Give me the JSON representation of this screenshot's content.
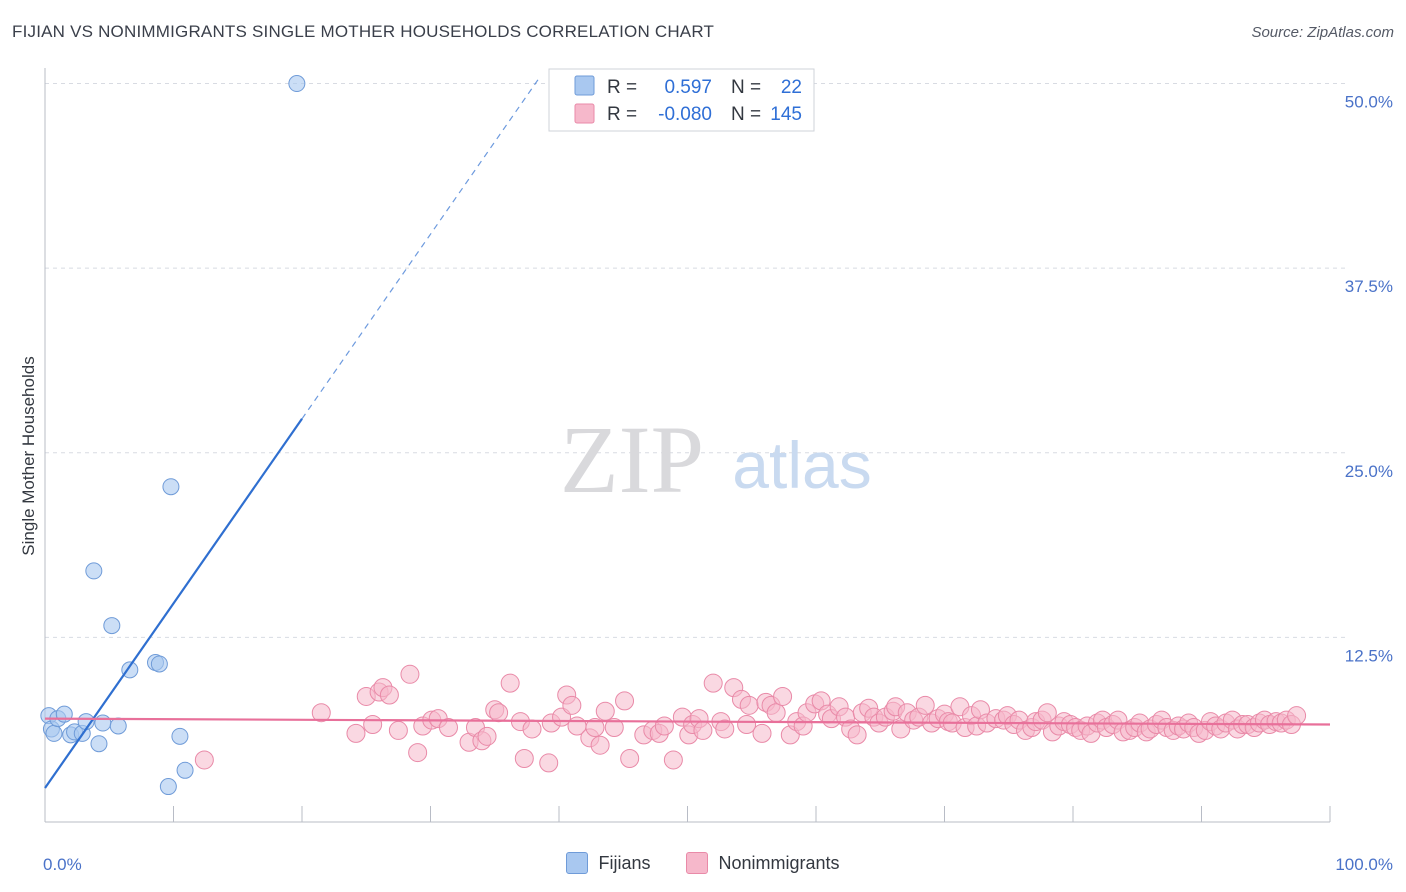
{
  "title": "FIJIAN VS NONIMMIGRANTS SINGLE MOTHER HOUSEHOLDS CORRELATION CHART",
  "source": "Source: ZipAtlas.com",
  "watermark": {
    "zip": "ZIP",
    "atlas": "atlas"
  },
  "colors": {
    "blue_fill": "#a9c8f0",
    "blue_stroke": "#6f9bd8",
    "blue_line": "#2f6fd0",
    "pink_fill": "#f6b8cb",
    "pink_stroke": "#e98aa8",
    "pink_line": "#e8709a",
    "grid": "#d8dbe2",
    "axis_text": "#4a72c8"
  },
  "legend": {
    "rows": [
      {
        "r_label": "R =",
        "r_value": "0.597",
        "n_label": "N =",
        "n_value": "22"
      },
      {
        "r_label": "R =",
        "r_value": "-0.080",
        "n_label": "N =",
        "n_value": "145"
      }
    ]
  },
  "bottom_legend": [
    {
      "label": "Fijians"
    },
    {
      "label": "Nonimmigrants"
    }
  ],
  "chart_data": {
    "type": "scatter",
    "title": "FIJIAN VS NONIMMIGRANTS SINGLE MOTHER HOUSEHOLDS CORRELATION CHART",
    "xlabel": "",
    "ylabel": "Single Mother Households",
    "xlim": [
      0,
      100
    ],
    "ylim": [
      0,
      52
    ],
    "x_tick_labels": [
      "0.0%",
      "100.0%"
    ],
    "y_ticks": [
      12.5,
      25.0,
      37.5,
      50.0
    ],
    "y_tick_labels": [
      "12.5%",
      "25.0%",
      "37.5%",
      "50.0%"
    ],
    "series": [
      {
        "name": "Fijians",
        "r": 0.597,
        "n": 22,
        "trend": {
          "x0": 0,
          "y0": 2.3,
          "x1": 20,
          "y1": 27.3,
          "dash_to_x": 38.5
        },
        "points": [
          [
            0.3,
            7.2
          ],
          [
            0.5,
            6.3
          ],
          [
            0.7,
            6.0
          ],
          [
            1.0,
            7.0
          ],
          [
            1.5,
            7.3
          ],
          [
            2.0,
            5.9
          ],
          [
            2.3,
            6.1
          ],
          [
            2.9,
            6.0
          ],
          [
            3.2,
            6.8
          ],
          [
            3.8,
            17.0
          ],
          [
            4.2,
            5.3
          ],
          [
            4.5,
            6.7
          ],
          [
            5.2,
            13.3
          ],
          [
            5.7,
            6.5
          ],
          [
            6.6,
            10.3
          ],
          [
            8.6,
            10.8
          ],
          [
            8.9,
            10.7
          ],
          [
            9.6,
            2.4
          ],
          [
            9.8,
            22.7
          ],
          [
            10.5,
            5.8
          ],
          [
            10.9,
            3.5
          ],
          [
            19.6,
            50.0
          ]
        ]
      },
      {
        "name": "Nonimmigrants",
        "r": -0.08,
        "n": 145,
        "trend": {
          "x0": 0,
          "y0": 7.0,
          "x1": 100,
          "y1": 6.6
        },
        "points": [
          [
            12.4,
            4.2
          ],
          [
            21.5,
            7.4
          ],
          [
            24.2,
            6.0
          ],
          [
            25.0,
            8.5
          ],
          [
            25.5,
            6.6
          ],
          [
            26.0,
            8.8
          ],
          [
            26.3,
            9.1
          ],
          [
            26.8,
            8.6
          ],
          [
            27.5,
            6.2
          ],
          [
            28.4,
            10.0
          ],
          [
            29.0,
            4.7
          ],
          [
            29.4,
            6.5
          ],
          [
            30.1,
            6.9
          ],
          [
            30.6,
            7.0
          ],
          [
            31.4,
            6.4
          ],
          [
            33.0,
            5.4
          ],
          [
            33.5,
            6.4
          ],
          [
            34.0,
            5.5
          ],
          [
            34.4,
            5.8
          ],
          [
            35.0,
            7.6
          ],
          [
            35.3,
            7.4
          ],
          [
            36.2,
            9.4
          ],
          [
            37.0,
            6.8
          ],
          [
            37.3,
            4.3
          ],
          [
            37.9,
            6.3
          ],
          [
            39.2,
            4.0
          ],
          [
            39.4,
            6.7
          ],
          [
            40.2,
            7.1
          ],
          [
            40.6,
            8.6
          ],
          [
            41.0,
            7.9
          ],
          [
            41.4,
            6.5
          ],
          [
            42.4,
            5.7
          ],
          [
            42.8,
            6.4
          ],
          [
            43.2,
            5.2
          ],
          [
            43.6,
            7.5
          ],
          [
            44.3,
            6.4
          ],
          [
            45.1,
            8.2
          ],
          [
            45.5,
            4.3
          ],
          [
            46.6,
            5.9
          ],
          [
            47.3,
            6.2
          ],
          [
            47.8,
            6.0
          ],
          [
            48.2,
            6.5
          ],
          [
            48.9,
            4.2
          ],
          [
            49.6,
            7.1
          ],
          [
            50.1,
            5.9
          ],
          [
            50.4,
            6.6
          ],
          [
            50.9,
            7.0
          ],
          [
            51.2,
            6.2
          ],
          [
            52.0,
            9.4
          ],
          [
            52.6,
            6.8
          ],
          [
            52.9,
            6.3
          ],
          [
            53.6,
            9.1
          ],
          [
            54.2,
            8.3
          ],
          [
            54.6,
            6.6
          ],
          [
            54.8,
            7.9
          ],
          [
            55.8,
            6.0
          ],
          [
            56.1,
            8.1
          ],
          [
            56.5,
            7.9
          ],
          [
            56.9,
            7.4
          ],
          [
            57.4,
            8.5
          ],
          [
            58.0,
            5.9
          ],
          [
            58.5,
            6.8
          ],
          [
            59.0,
            6.5
          ],
          [
            59.3,
            7.4
          ],
          [
            59.9,
            8.0
          ],
          [
            60.4,
            8.2
          ],
          [
            60.9,
            7.3
          ],
          [
            61.2,
            7.0
          ],
          [
            61.8,
            7.8
          ],
          [
            62.3,
            7.1
          ],
          [
            62.7,
            6.3
          ],
          [
            63.2,
            5.9
          ],
          [
            63.6,
            7.4
          ],
          [
            64.1,
            7.7
          ],
          [
            64.5,
            7.1
          ],
          [
            64.9,
            6.7
          ],
          [
            65.4,
            7.1
          ],
          [
            66.0,
            7.5
          ],
          [
            66.2,
            7.8
          ],
          [
            66.6,
            6.3
          ],
          [
            67.1,
            7.4
          ],
          [
            67.6,
            6.9
          ],
          [
            68.0,
            7.1
          ],
          [
            68.5,
            7.9
          ],
          [
            69.0,
            6.7
          ],
          [
            69.5,
            7.0
          ],
          [
            70.0,
            7.3
          ],
          [
            70.3,
            6.8
          ],
          [
            70.6,
            6.7
          ],
          [
            71.2,
            7.8
          ],
          [
            71.6,
            6.4
          ],
          [
            72.1,
            7.2
          ],
          [
            72.5,
            6.5
          ],
          [
            72.8,
            7.6
          ],
          [
            73.3,
            6.7
          ],
          [
            74.0,
            7.0
          ],
          [
            74.6,
            6.9
          ],
          [
            74.9,
            7.2
          ],
          [
            75.4,
            6.6
          ],
          [
            75.8,
            6.9
          ],
          [
            76.3,
            6.2
          ],
          [
            76.8,
            6.4
          ],
          [
            77.1,
            6.8
          ],
          [
            77.6,
            6.9
          ],
          [
            78.0,
            7.4
          ],
          [
            78.4,
            6.1
          ],
          [
            78.9,
            6.5
          ],
          [
            79.3,
            6.8
          ],
          [
            79.8,
            6.6
          ],
          [
            80.2,
            6.4
          ],
          [
            80.6,
            6.2
          ],
          [
            81.1,
            6.5
          ],
          [
            81.4,
            6.0
          ],
          [
            81.9,
            6.7
          ],
          [
            82.3,
            6.9
          ],
          [
            82.6,
            6.4
          ],
          [
            83.1,
            6.6
          ],
          [
            83.5,
            6.9
          ],
          [
            83.9,
            6.1
          ],
          [
            84.4,
            6.2
          ],
          [
            84.8,
            6.4
          ],
          [
            85.2,
            6.7
          ],
          [
            85.7,
            6.1
          ],
          [
            86.0,
            6.3
          ],
          [
            86.5,
            6.6
          ],
          [
            86.9,
            6.9
          ],
          [
            87.3,
            6.4
          ],
          [
            87.8,
            6.2
          ],
          [
            88.2,
            6.5
          ],
          [
            88.6,
            6.3
          ],
          [
            89.0,
            6.7
          ],
          [
            89.4,
            6.4
          ],
          [
            89.8,
            6.0
          ],
          [
            90.3,
            6.2
          ],
          [
            90.7,
            6.8
          ],
          [
            91.1,
            6.5
          ],
          [
            91.5,
            6.3
          ],
          [
            91.9,
            6.7
          ],
          [
            92.4,
            6.9
          ],
          [
            92.8,
            6.3
          ],
          [
            93.2,
            6.6
          ],
          [
            93.6,
            6.6
          ],
          [
            94.1,
            6.4
          ],
          [
            94.5,
            6.7
          ],
          [
            94.9,
            6.9
          ],
          [
            95.3,
            6.6
          ],
          [
            95.8,
            6.8
          ],
          [
            96.2,
            6.7
          ],
          [
            96.6,
            6.9
          ],
          [
            97.0,
            6.6
          ],
          [
            97.4,
            7.2
          ]
        ]
      }
    ]
  }
}
